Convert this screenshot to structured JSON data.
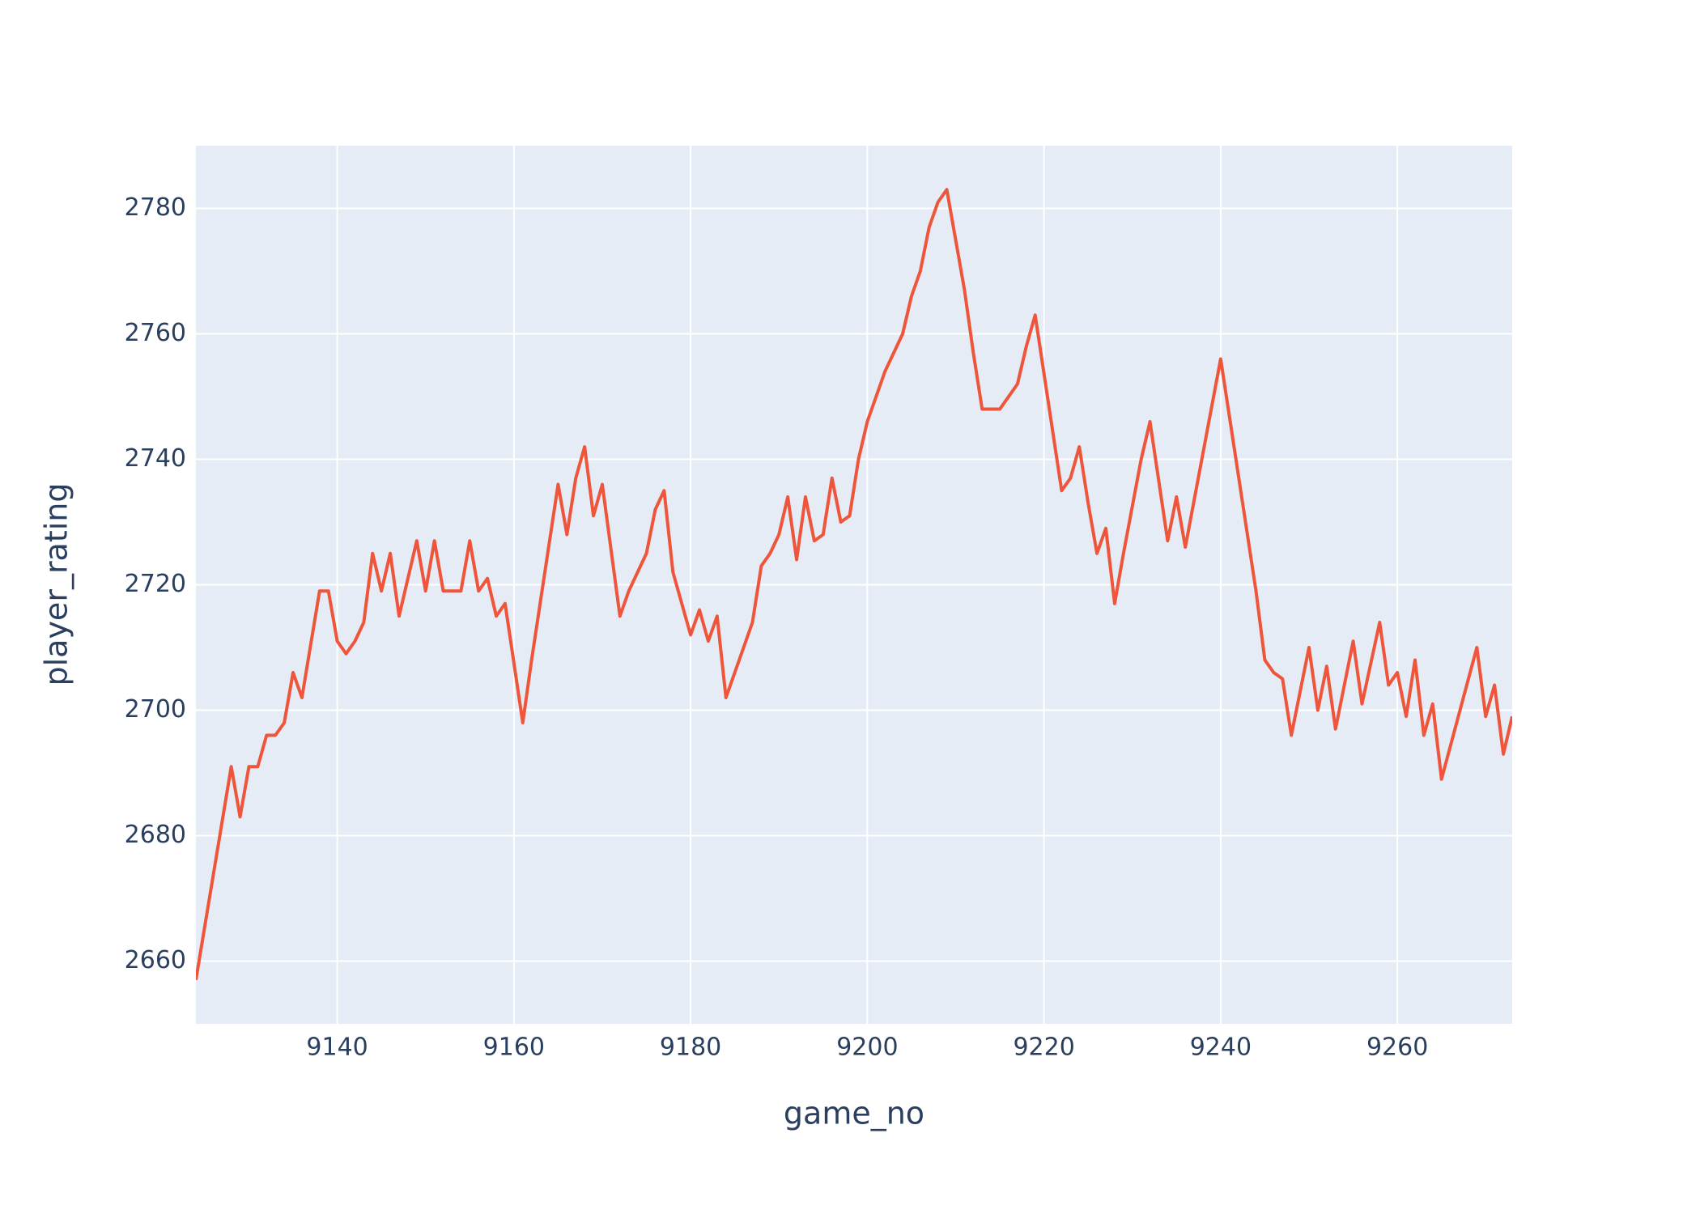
{
  "chart_data": {
    "type": "line",
    "x_label": "game_no",
    "y_label": "player_rating",
    "x": [
      9124,
      9128,
      9129,
      9130,
      9131,
      9132,
      9133,
      9134,
      9135,
      9136,
      9138,
      9139,
      9140,
      9141,
      9142,
      9143,
      9144,
      9145,
      9146,
      9147,
      9149,
      9150,
      9151,
      9152,
      9153,
      9154,
      9155,
      9156,
      9157,
      9158,
      9159,
      9161,
      9162,
      9165,
      9166,
      9167,
      9168,
      9169,
      9170,
      9172,
      9173,
      9175,
      9176,
      9177,
      9178,
      9180,
      9181,
      9182,
      9183,
      9184,
      9187,
      9188,
      9189,
      9190,
      9191,
      9192,
      9193,
      9194,
      9195,
      9196,
      9197,
      9198,
      9199,
      9200,
      9202,
      9204,
      9205,
      9206,
      9207,
      9208,
      9209,
      9211,
      9212,
      9213,
      9214,
      9215,
      9217,
      9218,
      9219,
      9222,
      9223,
      9224,
      9225,
      9226,
      9227,
      9228,
      9229,
      9231,
      9232,
      9234,
      9235,
      9236,
      9240,
      9244,
      9245,
      9246,
      9247,
      9248,
      9250,
      9251,
      9252,
      9253,
      9255,
      9256,
      9258,
      9259,
      9260,
      9261,
      9262,
      9263,
      9264,
      9265,
      9269,
      9270,
      9271,
      9272,
      9273
    ],
    "series": [
      {
        "name": "player_rating",
        "color": "#ef553b",
        "values": [
          2657,
          2691,
          2683,
          2691,
          2691,
          2696,
          2696,
          2698,
          2706,
          2702,
          2719,
          2719,
          2711,
          2709,
          2711,
          2714,
          2725,
          2719,
          2725,
          2715,
          2727,
          2719,
          2727,
          2719,
          2719,
          2719,
          2727,
          2719,
          2721,
          2715,
          2717,
          2698,
          2708,
          2736,
          2728,
          2737,
          2742,
          2731,
          2736,
          2715,
          2719,
          2725,
          2732,
          2735,
          2722,
          2712,
          2716,
          2711,
          2715,
          2702,
          2714,
          2723,
          2725,
          2728,
          2734,
          2724,
          2734,
          2727,
          2728,
          2737,
          2730,
          2731,
          2740,
          2746,
          2754,
          2760,
          2766,
          2770,
          2777,
          2781,
          2783,
          2767,
          2757,
          2748,
          2748,
          2748,
          2752,
          2758,
          2763,
          2735,
          2737,
          2742,
          2733,
          2725,
          2729,
          2717,
          2725,
          2740,
          2746,
          2727,
          2734,
          2726,
          2756,
          2719,
          2708,
          2706,
          2705,
          2696,
          2710,
          2700,
          2707,
          2697,
          2711,
          2701,
          2714,
          2704,
          2706,
          2699,
          2708,
          2696,
          2701,
          2689,
          2710,
          2699,
          2704,
          2693,
          2699
        ]
      }
    ],
    "xlim": [
      9124,
      9273
    ],
    "ylim": [
      2650,
      2790
    ],
    "xticks": [
      9140,
      9160,
      9180,
      9200,
      9220,
      9240,
      9260
    ],
    "yticks": [
      2660,
      2680,
      2700,
      2720,
      2740,
      2760,
      2780
    ],
    "grid": true
  }
}
